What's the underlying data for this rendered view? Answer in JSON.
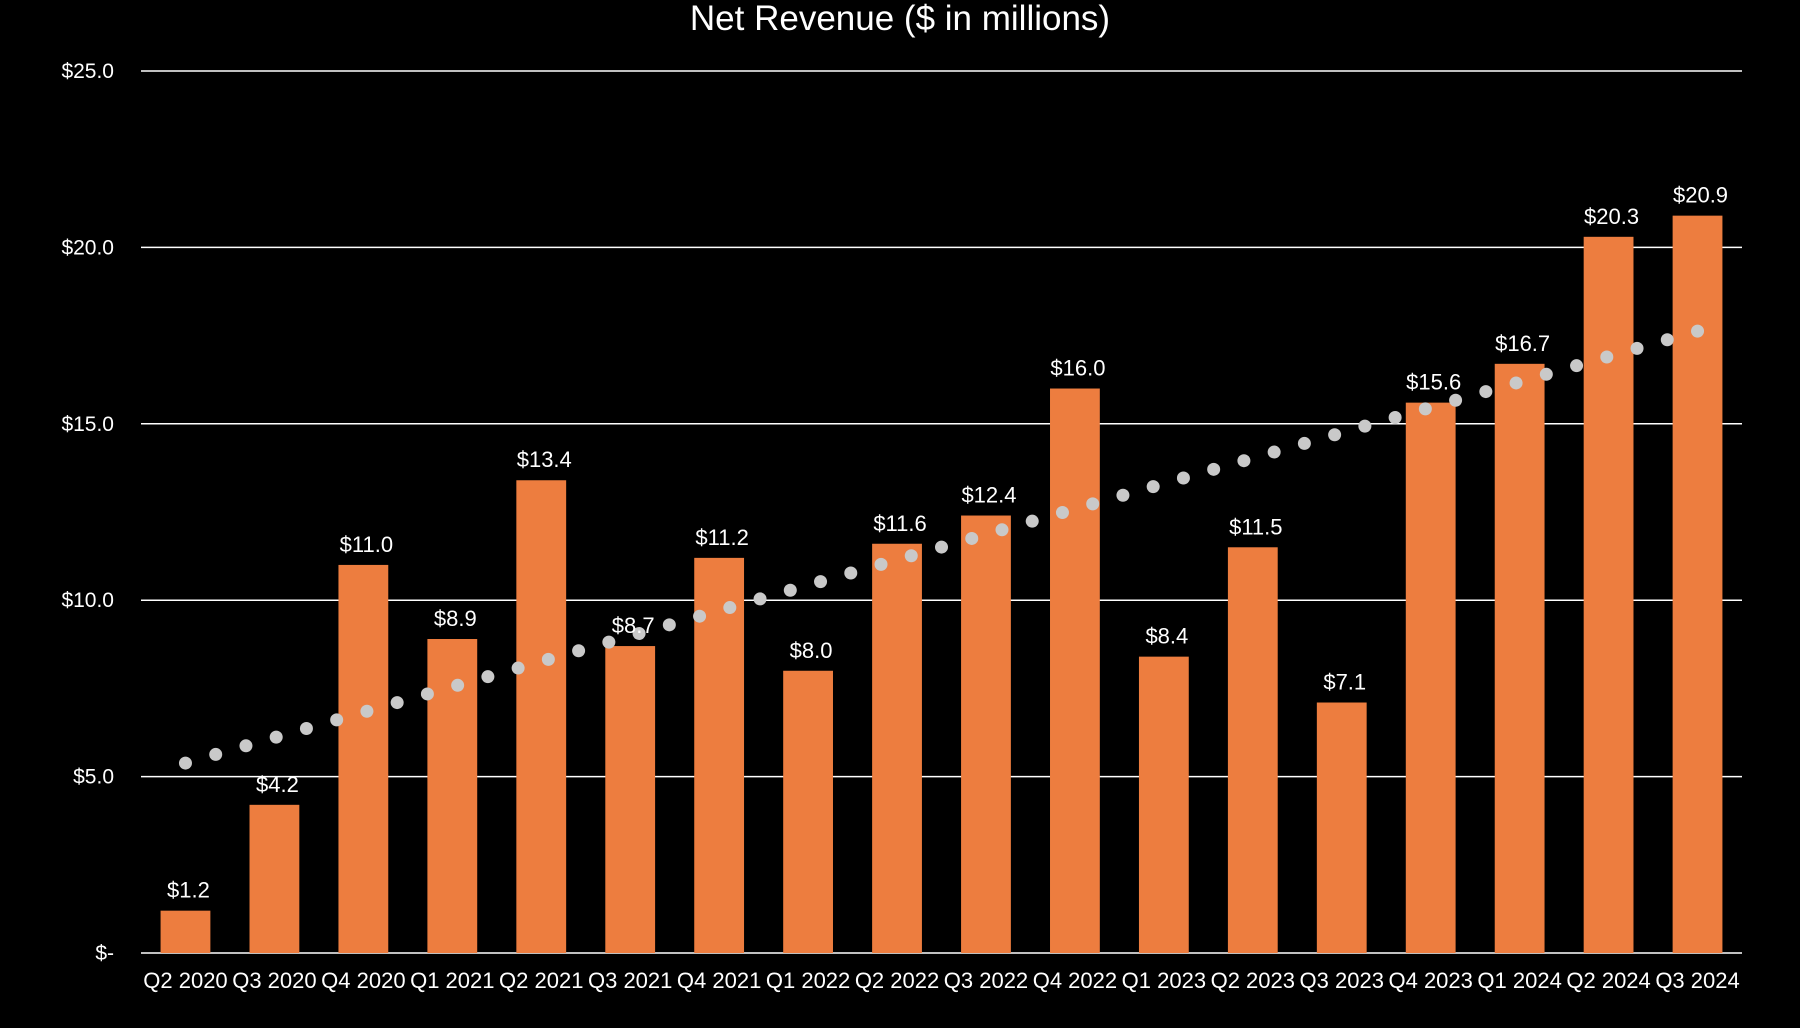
{
  "chart_data": {
    "type": "bar",
    "title": "Net Revenue ($ in millions)",
    "categories": [
      "Q2 2020",
      "Q3 2020",
      "Q4 2020",
      "Q1 2021",
      "Q2 2021",
      "Q3 2021",
      "Q4 2021",
      "Q1 2022",
      "Q2 2022",
      "Q3 2022",
      "Q4 2022",
      "Q1 2023",
      "Q2 2023",
      "Q3 2023",
      "Q4 2023",
      "Q1 2024",
      "Q2 2024",
      "Q3 2024"
    ],
    "values": [
      1.2,
      4.2,
      11.0,
      8.9,
      13.4,
      8.7,
      11.2,
      8.0,
      11.6,
      12.4,
      16.0,
      8.4,
      11.5,
      7.1,
      15.6,
      16.7,
      20.3,
      20.9
    ],
    "data_labels": [
      "$1.2",
      "$4.2",
      "$11.0",
      "$8.9",
      "$13.4",
      "$8.7",
      "$11.2",
      "$8.0",
      "$11.6",
      "$12.4",
      "$16.0",
      "$8.4",
      "$11.5",
      "$7.1",
      "$15.6",
      "$16.7",
      "$20.3",
      "$20.9"
    ],
    "ylim": [
      0,
      25
    ],
    "yticks": [
      0,
      5,
      10,
      15,
      20,
      25
    ],
    "ytick_labels": [
      "$-",
      "$5.0",
      "$10.0",
      "$15.0",
      "$20.0",
      "$25.0"
    ],
    "trendline": {
      "type": "linear",
      "style": "dotted"
    },
    "grid": true,
    "legend": "none",
    "colors": {
      "background": "#000000",
      "bar": "#ED7D3F",
      "trendline": "#C9C9C9",
      "gridline": "#FFFFFF",
      "text": "#FFFFFF"
    }
  }
}
